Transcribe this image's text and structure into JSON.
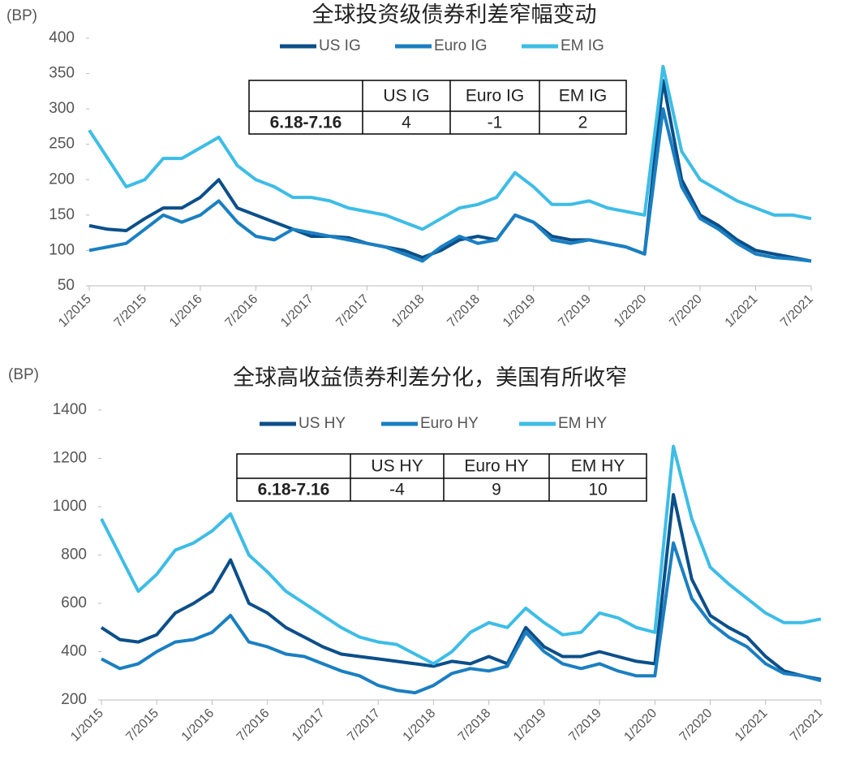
{
  "chart_data": [
    {
      "type": "line",
      "title": "全球投资级债券利差窄幅变动",
      "ylabel": "(BP)",
      "legend": "top",
      "categories": [
        "1/2015",
        null,
        null,
        "7/2015",
        null,
        null,
        "1/2016",
        null,
        null,
        "7/2016",
        null,
        null,
        "1/2017",
        null,
        null,
        "7/2017",
        null,
        null,
        "1/2018",
        null,
        null,
        "7/2018",
        null,
        null,
        "1/2019",
        null,
        null,
        "7/2019",
        null,
        null,
        "1/2020",
        null,
        null,
        "7/2020",
        null,
        null,
        "1/2021",
        null,
        null,
        "7/2021"
      ],
      "series": [
        {
          "name": "US IG",
          "color": "#0b4f8a",
          "values": [
            135,
            130,
            128,
            145,
            160,
            160,
            175,
            200,
            160,
            150,
            140,
            130,
            120,
            120,
            118,
            110,
            105,
            100,
            90,
            100,
            115,
            120,
            115,
            150,
            140,
            120,
            115,
            115,
            110,
            105,
            95,
            340,
            200,
            150,
            135,
            115,
            100,
            95,
            90,
            85
          ]
        },
        {
          "name": "Euro IG",
          "color": "#1a7fc1",
          "values": [
            100,
            105,
            110,
            130,
            150,
            140,
            150,
            170,
            140,
            120,
            115,
            130,
            125,
            120,
            115,
            110,
            105,
            95,
            85,
            105,
            120,
            110,
            115,
            150,
            140,
            115,
            110,
            115,
            110,
            105,
            95,
            300,
            190,
            145,
            130,
            110,
            95,
            90,
            88,
            85
          ]
        },
        {
          "name": "EM IG",
          "color": "#3dbde6",
          "values": [
            270,
            230,
            190,
            200,
            230,
            230,
            245,
            260,
            220,
            200,
            190,
            175,
            175,
            170,
            160,
            155,
            150,
            140,
            130,
            145,
            160,
            165,
            175,
            210,
            190,
            165,
            165,
            170,
            160,
            155,
            150,
            360,
            240,
            200,
            185,
            170,
            160,
            150,
            150,
            145
          ]
        }
      ],
      "ylim": [
        50,
        400
      ],
      "yticks": [
        50,
        100,
        150,
        200,
        250,
        300,
        350,
        400
      ],
      "table": {
        "columns": [
          "US IG",
          "Euro IG",
          "EM IG"
        ],
        "row_label": "6.18-7.16",
        "values": [
          4,
          -1,
          2
        ]
      }
    },
    {
      "type": "line",
      "title": "全球高收益债券利差分化，美国有所收窄",
      "ylabel": "(BP)",
      "legend": "top",
      "categories": [
        "1/2015",
        null,
        null,
        "7/2015",
        null,
        null,
        "1/2016",
        null,
        null,
        "7/2016",
        null,
        null,
        "1/2017",
        null,
        null,
        "7/2017",
        null,
        null,
        "1/2018",
        null,
        null,
        "7/2018",
        null,
        null,
        "1/2019",
        null,
        null,
        "7/2019",
        null,
        null,
        "1/2020",
        null,
        null,
        "7/2020",
        null,
        null,
        "1/2021",
        null,
        null,
        "7/2021"
      ],
      "series": [
        {
          "name": "US HY",
          "color": "#0b4f8a",
          "values": [
            500,
            450,
            440,
            470,
            560,
            600,
            650,
            780,
            600,
            560,
            500,
            460,
            420,
            390,
            380,
            370,
            360,
            350,
            340,
            360,
            350,
            380,
            350,
            500,
            420,
            380,
            380,
            400,
            380,
            360,
            350,
            1050,
            700,
            550,
            500,
            460,
            380,
            320,
            300,
            285
          ]
        },
        {
          "name": "Euro HY",
          "color": "#1a7fc1",
          "values": [
            370,
            330,
            350,
            400,
            440,
            450,
            480,
            550,
            440,
            420,
            390,
            380,
            350,
            320,
            300,
            260,
            240,
            230,
            260,
            310,
            330,
            320,
            340,
            480,
            400,
            350,
            330,
            350,
            320,
            300,
            300,
            850,
            620,
            520,
            460,
            420,
            350,
            310,
            300,
            280
          ]
        },
        {
          "name": "EM HY",
          "color": "#3dbde6",
          "values": [
            950,
            800,
            650,
            720,
            820,
            850,
            900,
            970,
            800,
            730,
            650,
            600,
            550,
            500,
            460,
            440,
            430,
            390,
            350,
            400,
            480,
            520,
            500,
            580,
            520,
            470,
            480,
            560,
            540,
            500,
            480,
            1250,
            950,
            750,
            680,
            620,
            560,
            520,
            520,
            535
          ]
        }
      ],
      "ylim": [
        200,
        1400
      ],
      "yticks": [
        200,
        400,
        600,
        800,
        1000,
        1200,
        1400
      ],
      "table": {
        "columns": [
          "US HY",
          "Euro HY",
          "EM HY"
        ],
        "row_label": "6.18-7.16",
        "values": [
          -4,
          9,
          10
        ]
      }
    }
  ]
}
